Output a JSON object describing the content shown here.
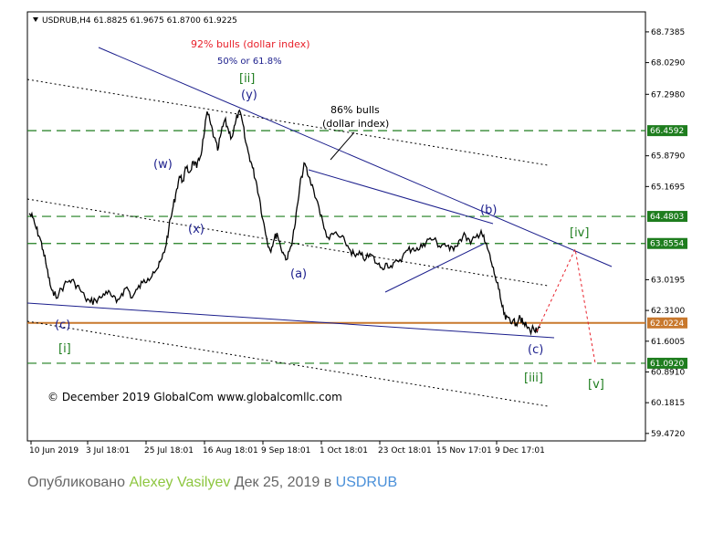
{
  "header": {
    "symbol_line": "USDRUB,H4  61.8825 61.9675 61.8700 61.9225"
  },
  "annotations": {
    "top_red": "92% bulls  (dollar index)",
    "top_blue": "50% or 61.8%",
    "mid_line1": "86% bulls",
    "mid_line2": "(dollar index)",
    "copyright": "© December 2019 GlobalCom www.globalcomllc.com"
  },
  "caption": {
    "prefix": "Опубликовано ",
    "author": "Alexey Vasilyev",
    "middle": " Дек 25, 2019 в ",
    "symbol": "USDRUB"
  },
  "colors": {
    "green_level": "#1e7d1e",
    "orange_level": "#c8782d",
    "navy": "#1b1e8c",
    "red": "#e8202a",
    "price": "#000000"
  },
  "chart_data": {
    "type": "line",
    "title": "USDRUB,H4",
    "ylim": [
      59.3,
      69.2
    ],
    "y_ticks": [
      59.472,
      60.1815,
      60.891,
      61.6005,
      62.31,
      63.0195,
      65.1695,
      65.879,
      67.298,
      68.029,
      68.7385
    ],
    "x_ticks": [
      "10 Jun 2019",
      "3 Jul 18:01",
      "25 Jul 18:01",
      "16 Aug 18:01",
      "9 Sep 18:01",
      "1 Oct 18:01",
      "23 Oct 18:01",
      "15 Nov 17:01",
      "9 Dec 17:01"
    ],
    "price_levels": [
      {
        "value": 66.4592,
        "label": "66.4592",
        "color": "#1e7d1e"
      },
      {
        "value": 64.4803,
        "label": "64.4803",
        "color": "#1e7d1e"
      },
      {
        "value": 63.8554,
        "label": "63.8554",
        "color": "#1e7d1e"
      },
      {
        "value": 62.0224,
        "label": "62.0224",
        "color": "#c8782d"
      },
      {
        "value": 61.092,
        "label": "61.0920",
        "color": "#1e7d1e"
      }
    ],
    "series": [
      {
        "x": [
          0,
          4,
          8,
          12,
          16,
          20,
          24,
          28,
          34,
          40,
          46,
          52,
          58,
          64,
          70,
          76,
          82,
          88,
          94,
          100,
          106,
          112,
          118,
          124,
          130,
          136,
          142,
          148,
          152,
          156,
          160,
          164,
          168,
          172,
          176,
          180,
          184,
          188,
          192,
          196,
          200,
          204,
          208,
          212,
          216,
          220,
          224,
          228,
          232,
          236,
          240,
          244,
          248,
          252,
          256,
          260,
          264,
          268,
          272,
          276,
          280,
          284,
          288,
          292,
          296,
          300,
          304,
          308,
          312,
          316,
          320,
          326,
          332,
          338,
          344,
          350,
          356,
          362,
          368,
          374,
          380,
          386,
          392,
          398,
          404,
          410,
          416,
          422,
          428,
          434,
          440,
          446,
          452,
          458,
          464,
          470,
          476,
          482,
          488,
          494,
          500,
          506,
          512,
          518,
          522,
          526,
          530,
          534,
          538,
          542,
          546,
          550,
          554,
          558,
          562,
          566,
          570,
          574,
          578,
          582,
          586
        ],
        "y": [
          64.55,
          64.45,
          64.2,
          64.0,
          63.7,
          63.3,
          62.9,
          62.65,
          62.7,
          62.9,
          63.0,
          62.95,
          62.8,
          62.6,
          62.5,
          62.55,
          62.6,
          62.75,
          62.65,
          62.5,
          62.7,
          62.85,
          62.6,
          62.8,
          62.95,
          63.05,
          63.2,
          63.3,
          63.5,
          63.75,
          64.2,
          64.6,
          65.0,
          65.4,
          65.3,
          65.6,
          65.5,
          65.75,
          65.6,
          65.85,
          66.3,
          66.9,
          66.6,
          66.3,
          66.0,
          66.4,
          66.7,
          66.5,
          66.3,
          66.6,
          66.9,
          66.7,
          66.2,
          65.9,
          65.6,
          65.3,
          64.9,
          64.4,
          64.0,
          63.7,
          63.9,
          64.1,
          63.8,
          63.6,
          63.5,
          63.8,
          64.2,
          64.8,
          65.4,
          65.7,
          65.4,
          65.1,
          64.7,
          64.2,
          63.95,
          64.1,
          64.0,
          63.9,
          63.7,
          63.55,
          63.6,
          63.5,
          63.6,
          63.4,
          63.3,
          63.4,
          63.3,
          63.45,
          63.55,
          63.7,
          63.75,
          63.7,
          63.85,
          63.95,
          63.95,
          63.8,
          63.85,
          63.7,
          63.8,
          63.95,
          64.05,
          63.85,
          64.0,
          64.15,
          63.9,
          63.7,
          63.4,
          63.1,
          62.8,
          62.4,
          62.1,
          62.15,
          62.05,
          62.0,
          62.2,
          62.0,
          61.95,
          61.85,
          61.9,
          61.8,
          61.92
        ]
      }
    ]
  }
}
